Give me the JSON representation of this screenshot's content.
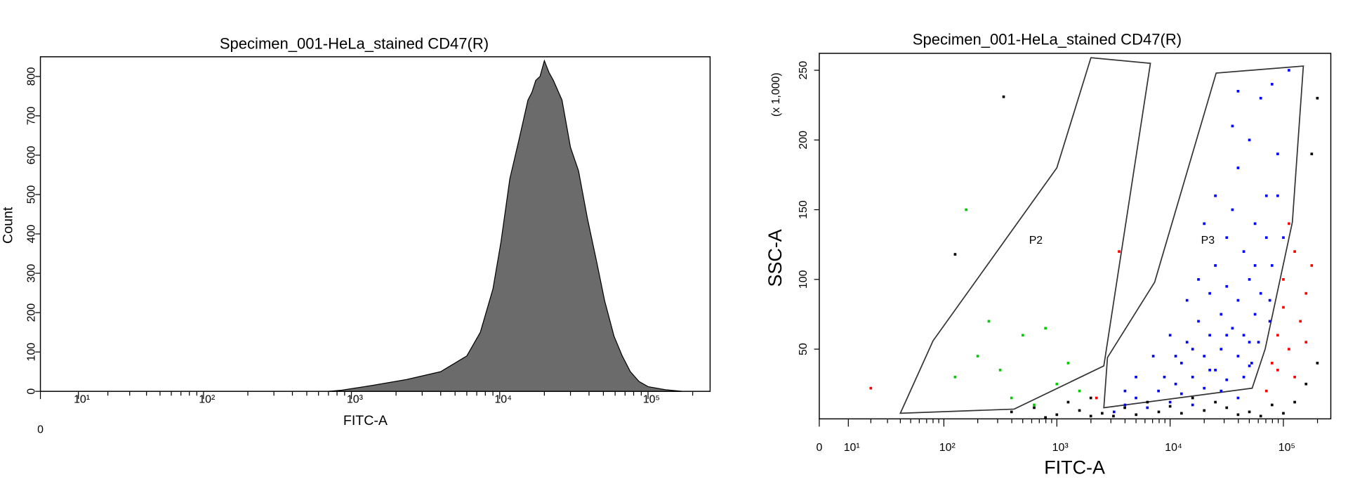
{
  "chart_data": [
    {
      "type": "area",
      "title": "Specimen_001-HeLa_stained CD47(R)",
      "x_label": "FITC-A",
      "y_label": "Count",
      "xscale": "biexponential",
      "color": "#6b6b6b",
      "x": [
        700,
        863,
        1380,
        2350,
        4000,
        6000,
        7400,
        9000,
        10200,
        11700,
        13500,
        15500,
        16500,
        17500,
        18700,
        20000,
        21500,
        23000,
        26300,
        30000,
        34000,
        39000,
        45000,
        51000,
        59000,
        67000,
        76000,
        87000,
        100000,
        131000,
        170000
      ],
      "values": [
        0,
        3,
        15,
        30,
        50,
        90,
        150,
        260,
        380,
        540,
        640,
        740,
        760,
        790,
        800,
        840,
        810,
        790,
        740,
        620,
        560,
        440,
        330,
        230,
        140,
        90,
        50,
        25,
        12,
        4,
        0
      ],
      "xlim": [
        0,
        262144
      ],
      "ylim": [
        0,
        850
      ],
      "xticks": [
        0,
        {
          "value": 10,
          "label": "10¹"
        },
        {
          "value": 100,
          "label": "10²"
        },
        {
          "value": 1000,
          "label": "10³"
        },
        {
          "value": 10000,
          "label": "10⁴"
        },
        {
          "value": 100000,
          "label": "10⁵"
        }
      ],
      "xminorticks": [
        20,
        30,
        40,
        50,
        60,
        70,
        80,
        90,
        200,
        300,
        400,
        500,
        600,
        700,
        800,
        900,
        2000,
        3000,
        4000,
        5000,
        6000,
        7000,
        8000,
        9000,
        20000,
        30000,
        40000,
        50000,
        60000,
        70000,
        80000,
        90000,
        200000
      ],
      "yticks": [
        0,
        100,
        200,
        300,
        400,
        500,
        600,
        700,
        800
      ]
    },
    {
      "type": "scatter",
      "title": "Specimen_001-HeLa_stained CD47(R)",
      "x_label": "FITC-A",
      "y_label": "SSC-A",
      "y_unit_label": "(x 1,000)",
      "xscale": "biexponential",
      "xlim": [
        0,
        262144
      ],
      "ylim": [
        0,
        262144
      ],
      "xticks": [
        0,
        {
          "value": 10,
          "label": "10¹"
        },
        {
          "value": 100,
          "label": "10²"
        },
        {
          "value": 1000,
          "label": "10³"
        },
        {
          "value": 10000,
          "label": "10⁴"
        },
        {
          "value": 100000,
          "label": "10⁵"
        }
      ],
      "xminorticks": [
        20,
        30,
        40,
        50,
        60,
        70,
        80,
        90,
        200,
        300,
        400,
        500,
        600,
        700,
        800,
        900,
        2000,
        3000,
        4000,
        5000,
        6000,
        7000,
        8000,
        9000,
        20000,
        30000,
        40000,
        50000,
        60000,
        70000,
        80000,
        90000,
        200000
      ],
      "yticks": [
        {
          "value": 50000,
          "label": "50"
        },
        {
          "value": 100000,
          "label": "100"
        },
        {
          "value": 150000,
          "label": "150"
        },
        {
          "value": 200000,
          "label": "200"
        },
        {
          "value": 250000,
          "label": "250"
        }
      ],
      "series": [
        {
          "color": "#0000ff",
          "x": [
            3200,
            4000,
            5000,
            6300,
            7900,
            8900,
            10000,
            11200,
            12600,
            12600,
            14100,
            15800,
            15800,
            17800,
            20000,
            20000,
            22400,
            22400,
            25100,
            25100,
            28200,
            28200,
            31600,
            31600,
            31600,
            35500,
            35500,
            39800,
            39800,
            39800,
            44700,
            44700,
            50100,
            50100,
            50100,
            56200,
            56200,
            63100,
            63100,
            70800,
            60300,
            79400,
            79400,
            75900,
            89100,
            100000,
            112000,
            75900,
            10000,
            7100,
            17800,
            14100,
            25100,
            35500,
            39800,
            20000,
            5000,
            4000,
            28200,
            44700,
            52500,
            39800,
            50100,
            31600,
            22400,
            15800,
            11200,
            56200,
            70800,
            89100
          ],
          "values": [
            5000,
            10000,
            15000,
            8000,
            20000,
            30000,
            12000,
            25000,
            40000,
            18000,
            55000,
            30000,
            10000,
            70000,
            45000,
            22000,
            90000,
            60000,
            35000,
            110000,
            75000,
            50000,
            130000,
            95000,
            28000,
            65000,
            150000,
            85000,
            45000,
            180000,
            120000,
            60000,
            100000,
            200000,
            38000,
            140000,
            75000,
            230000,
            90000,
            160000,
            55000,
            110000,
            240000,
            70000,
            190000,
            130000,
            250000,
            85000,
            60000,
            45000,
            100000,
            85000,
            160000,
            210000,
            235000,
            140000,
            30000,
            20000,
            20000,
            30000,
            40000,
            15000,
            55000,
            60000,
            35000,
            50000,
            45000,
            110000,
            130000,
            160000
          ]
        },
        {
          "color": "#000000",
          "x": [
            398,
            631,
            1000,
            1259,
            1585,
            1995,
            2512,
            3162,
            5012,
            7943,
            12600,
            20000,
            31600,
            50100,
            79400,
            125893,
            158489,
            199526,
            177828,
            199526,
            126,
            339,
            3981,
            6310,
            10000,
            15800,
            25100,
            39800,
            63100,
            100000,
            1995,
            794
          ],
          "values": [
            5000,
            8000,
            3000,
            12000,
            6000,
            15000,
            4000,
            2000,
            3000,
            5000,
            4000,
            6000,
            8000,
            5000,
            10000,
            12000,
            25000,
            40000,
            190000,
            230000,
            118000,
            231000,
            8000,
            12000,
            9000,
            15000,
            12000,
            3000,
            2000,
            4000,
            2000,
            1000
          ]
        },
        {
          "color": "#ff0000",
          "x": [
            70800,
            79400,
            89100,
            100000,
            100000,
            112000,
            125893,
            125893,
            112000,
            141254,
            158489,
            177828,
            89100,
            158489,
            20,
            3548,
            2239
          ],
          "values": [
            20000,
            40000,
            60000,
            80000,
            100000,
            50000,
            30000,
            120000,
            140000,
            70000,
            90000,
            110000,
            35000,
            55000,
            22000,
            120000,
            15000
          ]
        },
        {
          "color": "#00cc00",
          "x": [
            126,
            200,
            316,
            501,
            794,
            1000,
            1259,
            1585,
            398,
            631,
            158,
            251
          ],
          "values": [
            30000,
            45000,
            35000,
            60000,
            65000,
            25000,
            40000,
            20000,
            15000,
            10000,
            150000,
            70000
          ]
        }
      ],
      "gates": [
        {
          "name": "P2",
          "x": [
            40,
            80,
            1000,
            2000,
            6700,
            2600,
            420
          ],
          "y": [
            4000,
            56000,
            180000,
            259000,
            255000,
            38000,
            7000
          ]
        },
        {
          "name": "P3",
          "x": [
            2600,
            2800,
            7300,
            25500,
            150000,
            120000,
            69000,
            53000
          ],
          "y": [
            8000,
            44000,
            98000,
            248000,
            253000,
            141000,
            50000,
            22000
          ]
        }
      ]
    }
  ]
}
